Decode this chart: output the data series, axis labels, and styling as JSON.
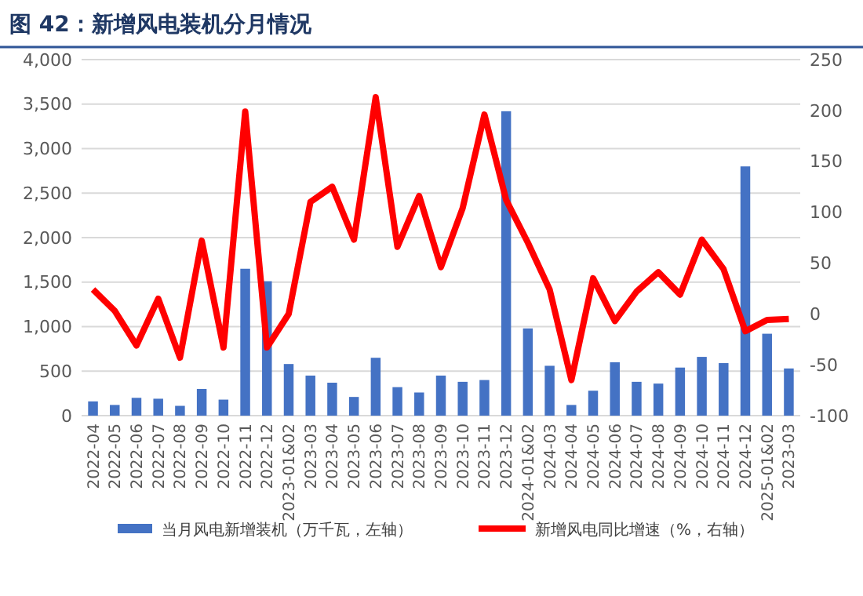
{
  "chart_data": {
    "type": "bar",
    "title": "图 42：新增风电装机分月情况",
    "categories": [
      "2022-04",
      "2022-05",
      "2022-06",
      "2022-07",
      "2022-08",
      "2022-09",
      "2022-10",
      "2022-11",
      "2022-12",
      "2023-01&02",
      "2023-03",
      "2023-04",
      "2023-05",
      "2023-06",
      "2023-07",
      "2023-08",
      "2023-09",
      "2023-10",
      "2023-11",
      "2023-12",
      "2024-01&02",
      "2024-03",
      "2024-04",
      "2024-05",
      "2024-06",
      "2024-07",
      "2024-08",
      "2024-09",
      "2024-10",
      "2024-11",
      "2024-12",
      "2025-01&02",
      "2023-03"
    ],
    "series": [
      {
        "name": "当月风电新增装机（万千瓦，左轴）",
        "color": "#4472c4",
        "values": [
          160,
          120,
          200,
          190,
          110,
          300,
          180,
          1650,
          1510,
          580,
          450,
          370,
          210,
          650,
          320,
          260,
          450,
          380,
          400,
          3420,
          980,
          560,
          120,
          280,
          600,
          380,
          360,
          540,
          660,
          590,
          2800,
          920,
          530
        ]
      },
      {
        "name": "新增风电同比增速（%，右轴）",
        "type": "line",
        "axis": "y2",
        "color": "#ff0000",
        "values": [
          24,
          3,
          -31,
          15,
          -43,
          72,
          -33,
          199,
          -33,
          0,
          110,
          125,
          73,
          213,
          66,
          116,
          46,
          104,
          196,
          112,
          70,
          24,
          -65,
          35,
          -7,
          22,
          41,
          19,
          73,
          44,
          -17,
          -6,
          -5
        ]
      }
    ],
    "ylim": [
      0,
      4000
    ],
    "yticks": [
      {
        "value": 0,
        "label": "0"
      },
      {
        "value": 500,
        "label": "500"
      },
      {
        "value": 1000,
        "label": "1,000"
      },
      {
        "value": 1500,
        "label": "1,500"
      },
      {
        "value": 2000,
        "label": "2,000"
      },
      {
        "value": 2500,
        "label": "2,500"
      },
      {
        "value": 3000,
        "label": "3,000"
      },
      {
        "value": 3500,
        "label": "3,500"
      },
      {
        "value": 4000,
        "label": "4,000"
      }
    ],
    "y2lim": [
      -100,
      250
    ],
    "y2ticks": [
      -100,
      -50,
      0,
      50,
      100,
      150,
      200,
      250
    ],
    "grid": "y",
    "legend": "bottom",
    "marker": "none",
    "line_style": "solid"
  }
}
